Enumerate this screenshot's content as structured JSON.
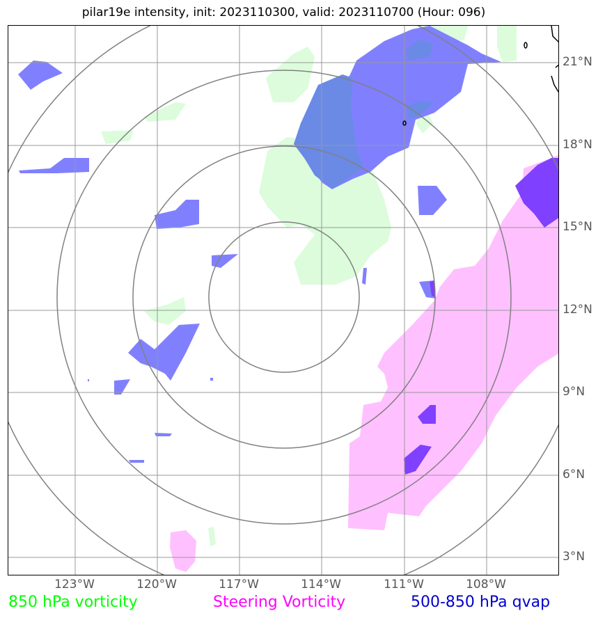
{
  "title": "pilar19e intensity, init: 2023110300, valid: 2023110700 (Hour: 096)",
  "map": {
    "lat_labels": [
      "21°N",
      "18°N",
      "15°N",
      "12°N",
      "9°N",
      "6°N",
      "3°N"
    ],
    "lon_labels": [
      "123°W",
      "120°W",
      "117°W",
      "114°W",
      "111°W",
      "108°W"
    ]
  },
  "legend": {
    "vort850": {
      "label": "850 hPa vorticity",
      "color": "#00ff00"
    },
    "steering": {
      "label": "Steering Vorticity",
      "color": "#ff00ff"
    },
    "qvap": {
      "label": "500-850 hPa qvap",
      "color": "#0000cc"
    }
  },
  "colors": {
    "green_fill": "#dcfcdc",
    "pink_fill": "#ffc0ff",
    "blue_fill": "#8080ff",
    "blue_overlap": "#6a8ae6",
    "violet_fill": "#8040ff",
    "grid": "#999999",
    "rings": "#808080"
  }
}
